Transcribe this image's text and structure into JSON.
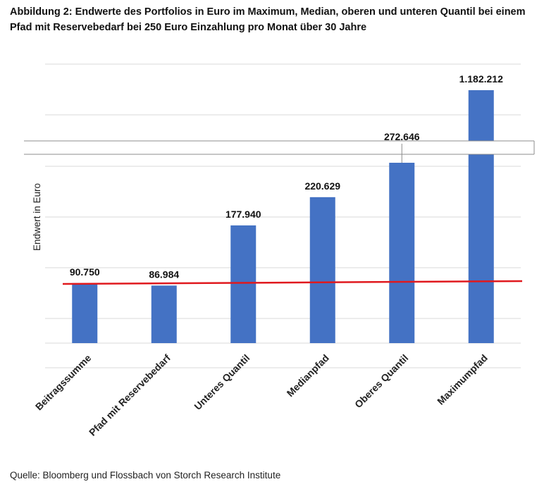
{
  "title": "Abbildung 2: Endwerte des Portfolios in Euro im Maximum, Median, oberen und unteren Quantil bei einem Pfad mit Reservebedarf bei 250 Euro Einzahlung pro Monat über 30 Jahre",
  "source": "Quelle: Bloomberg und Flossbach von Storch Research Institute",
  "chart_data": {
    "type": "bar",
    "ylabel": "Endwert in Euro",
    "categories": [
      "Beitragssumme",
      "Pfad mit Reservebedarf",
      "Unteres Quantil",
      "Medianpfad",
      "Oberes Quantil",
      "Maximumpfad"
    ],
    "values": [
      90750,
      86984,
      177940,
      220629,
      272646,
      1182212
    ],
    "value_labels": [
      "90.750",
      "86.984",
      "177.940",
      "220.629",
      "272.646",
      "1.182.212"
    ],
    "axis_break": true,
    "grid": true,
    "legend": "none",
    "reference_line": {
      "value": 90000,
      "color": "#e0191e"
    },
    "bar_color": "#4472c4"
  }
}
